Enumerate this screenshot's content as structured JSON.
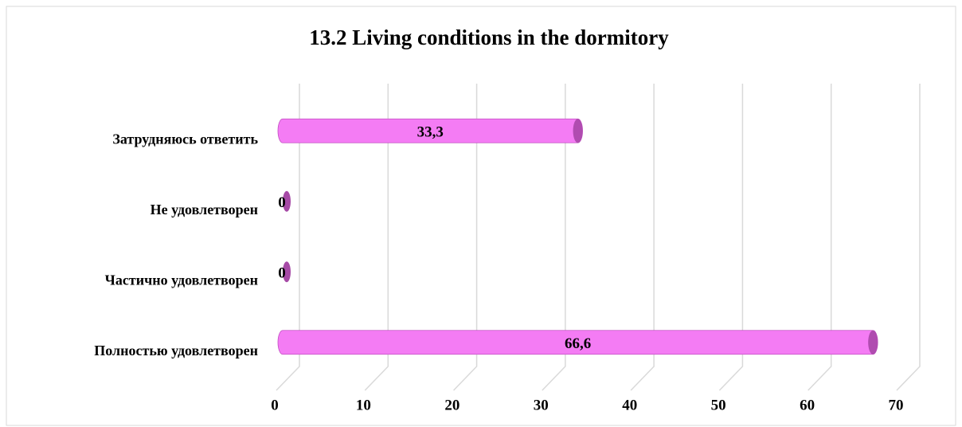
{
  "chart_data": {
    "type": "bar",
    "orientation": "horizontal",
    "title": "13.2 Living conditions in the dormitory",
    "categories": [
      "Затрудняюсь ответить",
      "Не удовлетворен",
      "Частично удовлетворен",
      "Полностью удовлетворен"
    ],
    "values": [
      33.3,
      0,
      0,
      66.6
    ],
    "value_labels": [
      "33,3",
      "0",
      "0",
      "66,6"
    ],
    "color": "#f47cf4",
    "xlim": [
      0,
      70
    ],
    "xticks": [
      0,
      10,
      20,
      30,
      40,
      50,
      60,
      70
    ],
    "grid": true
  }
}
